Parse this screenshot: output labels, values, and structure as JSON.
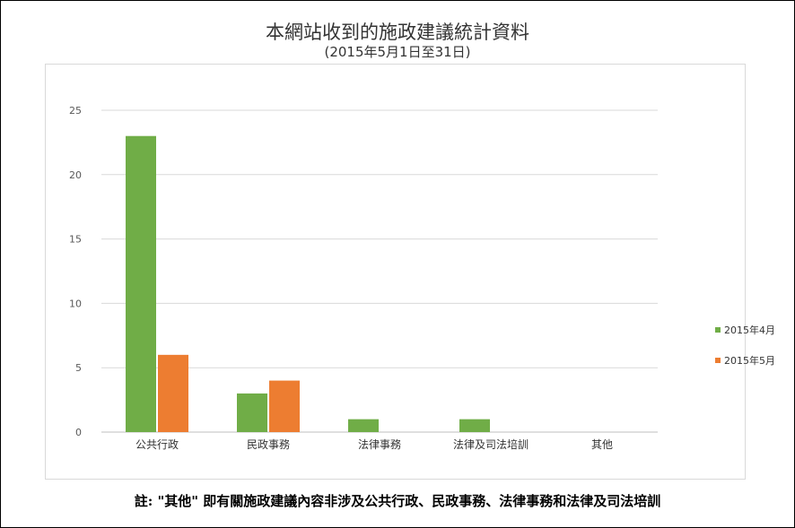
{
  "chart_data": {
    "type": "bar",
    "title": "本網站收到的施政建議統計資料",
    "subtitle": "(2015年5月1日至31日)",
    "categories": [
      "公共行政",
      "民政事務",
      "法律事務",
      "法律及司法培訓",
      "其他"
    ],
    "series": [
      {
        "name": "2015年4月",
        "color": "#70ad47",
        "values": [
          23,
          3,
          1,
          1,
          0
        ]
      },
      {
        "name": "2015年5月",
        "color": "#ed7d31",
        "values": [
          6,
          4,
          0,
          0,
          0
        ]
      }
    ],
    "ylim": [
      0,
      25
    ],
    "yticks": [
      0,
      5,
      10,
      15,
      20,
      25
    ],
    "grid": true,
    "legend_position": "right"
  },
  "footnote": "註: \"其他\" 即有關施政建議內容非涉及公共行政、民政事務、法律事務和法律及司法培訓"
}
